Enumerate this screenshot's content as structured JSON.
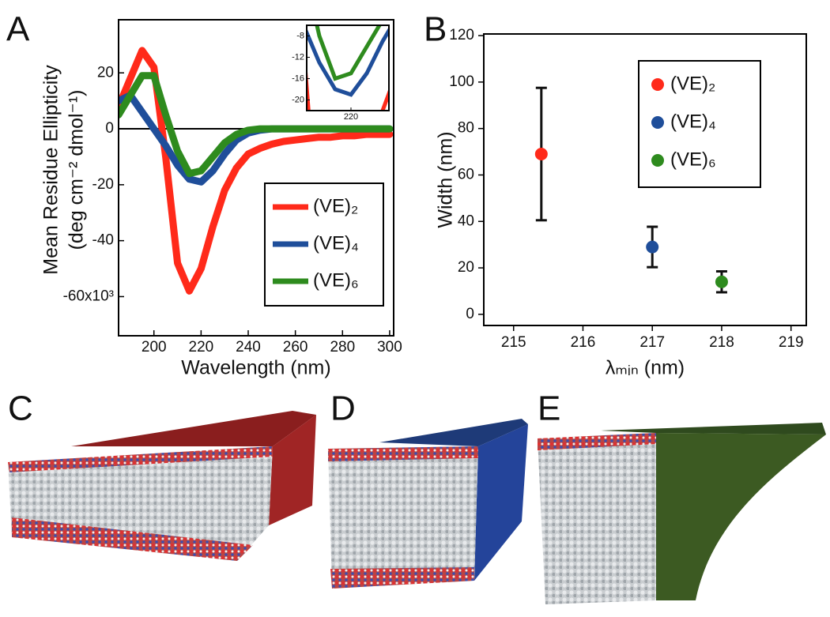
{
  "panel_labels": [
    "A",
    "B",
    "C",
    "D",
    "E"
  ],
  "chart_data": [
    {
      "type": "line",
      "x_label": "Wavelength (nm)",
      "y_label": [
        "Mean Residue Ellipticity",
        "(deg cm⁻² dmol⁻¹)"
      ],
      "x": [
        185,
        190,
        195,
        200,
        205,
        210,
        215,
        220,
        225,
        230,
        235,
        240,
        245,
        250,
        255,
        260,
        265,
        270,
        275,
        280,
        285,
        290,
        295,
        300
      ],
      "series": [
        {
          "name": "(VE)₂",
          "color": "#ff2a1a",
          "values": [
            8,
            18,
            28,
            22,
            -10,
            -48,
            -58,
            -50,
            -35,
            -22,
            -14,
            -9,
            -7,
            -5.5,
            -4.5,
            -4,
            -3.5,
            -3,
            -3,
            -2.5,
            -2.5,
            -2,
            -2,
            -2
          ]
        },
        {
          "name": "(VE)₄",
          "color": "#1f4e9a",
          "values": [
            10,
            12,
            6,
            0,
            -6,
            -13,
            -18,
            -19,
            -15,
            -9,
            -4,
            -1.5,
            -0.5,
            0,
            0,
            0,
            0,
            0,
            0,
            0,
            0,
            0,
            0,
            0
          ]
        },
        {
          "name": "(VE)₆",
          "color": "#2e8b1e",
          "values": [
            5,
            12,
            19,
            19,
            5,
            -8,
            -16,
            -15,
            -10,
            -5,
            -2,
            -0.5,
            0,
            0,
            0,
            0,
            0,
            0,
            0,
            0,
            0,
            0,
            0,
            0
          ]
        }
      ],
      "xlim": [
        185,
        301.7
      ],
      "xticks": [
        200,
        220,
        240,
        260,
        280,
        300
      ],
      "ylim": [
        -74,
        39
      ],
      "yticks": [
        {
          "value": -60,
          "label": "-60x10³"
        },
        -40,
        -20,
        0,
        20
      ],
      "zero_line": true,
      "inset": {
        "xlim": [
          206,
          232
        ],
        "ylim": [
          -22,
          -6
        ],
        "xticks": [
          220
        ],
        "yticks": [
          -8,
          -12,
          -16,
          -20
        ]
      }
    },
    {
      "type": "errorbar",
      "x_label": "λₘᵢₙ (nm)",
      "y_label": "Width (nm)",
      "series": [
        {
          "name": "(VE)₂",
          "color": "#ff2a1a",
          "x": [
            215.4
          ],
          "values": [
            69
          ],
          "errors": [
            28.5
          ]
        },
        {
          "name": "(VE)₄",
          "color": "#1f4e9a",
          "x": [
            217
          ],
          "values": [
            29
          ],
          "errors": [
            8.7
          ]
        },
        {
          "name": "(VE)₆",
          "color": "#2e8b1e",
          "x": [
            218
          ],
          "values": [
            14
          ],
          "errors": [
            4.5
          ]
        }
      ],
      "xlim": [
        214.57,
        219.22
      ],
      "xticks": [
        215,
        216,
        217,
        218,
        219
      ],
      "ylim": [
        -4.8,
        120.7
      ],
      "yticks": [
        0,
        20,
        40,
        60,
        80,
        100,
        120
      ]
    }
  ]
}
